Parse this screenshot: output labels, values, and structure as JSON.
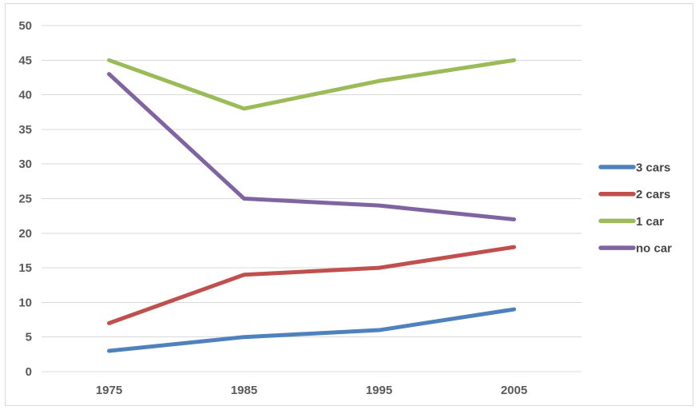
{
  "chart_data": {
    "type": "line",
    "title": "",
    "xlabel": "",
    "ylabel": "",
    "categories": [
      "1975",
      "1985",
      "1995",
      "2005"
    ],
    "series": [
      {
        "name": "3 cars",
        "color": "#4F81BD",
        "values": [
          3,
          5,
          6,
          9
        ]
      },
      {
        "name": "2 cars",
        "color": "#C0504D",
        "values": [
          7,
          14,
          15,
          18
        ]
      },
      {
        "name": "1 car",
        "color": "#9BBB59",
        "values": [
          45,
          38,
          42,
          45
        ]
      },
      {
        "name": "no car",
        "color": "#8064A2",
        "values": [
          43,
          25,
          24,
          22
        ]
      }
    ],
    "ylim": [
      0,
      50
    ],
    "yticks": [
      0,
      5,
      10,
      15,
      20,
      25,
      30,
      35,
      40,
      45,
      50
    ],
    "grid": true,
    "legend_position": "right"
  },
  "style": {
    "background": "#FFFFFF",
    "border_color": "#D9D9D9",
    "gridline_color": "#D9D9D9",
    "tick_label_color": "#595959",
    "legend_text_color": "#444444"
  }
}
